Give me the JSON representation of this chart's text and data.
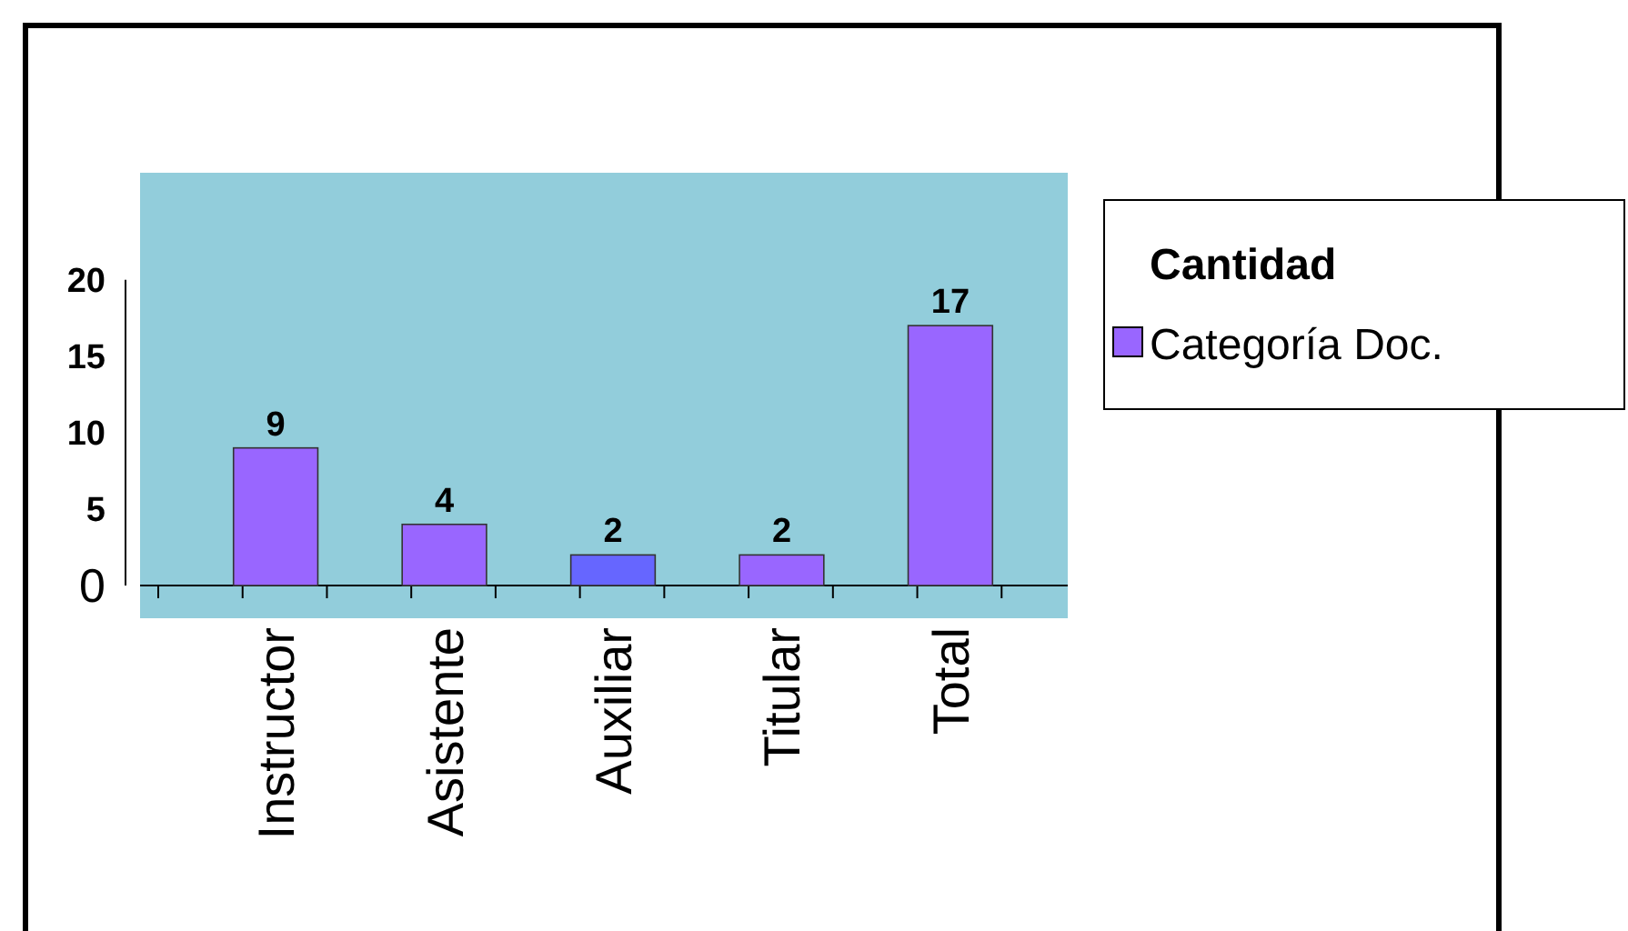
{
  "chart_data": {
    "type": "bar",
    "categories": [
      "Instructor",
      "Asistente",
      "Auxiliar",
      "Titular",
      "Total"
    ],
    "series": [
      {
        "name": "Categoría Doc.",
        "color": "#9966ff",
        "colors": [
          "#9966ff",
          "#9966ff",
          "#6666ff",
          "#9966ff",
          "#9966ff"
        ],
        "values": [
          9,
          4,
          2,
          2,
          17
        ]
      }
    ],
    "legend_title": "Cantidad",
    "legend": "right",
    "data_labels": true,
    "grid": false,
    "ylim": [
      0,
      27
    ],
    "yticks": [
      0,
      5,
      10,
      15,
      20
    ]
  }
}
